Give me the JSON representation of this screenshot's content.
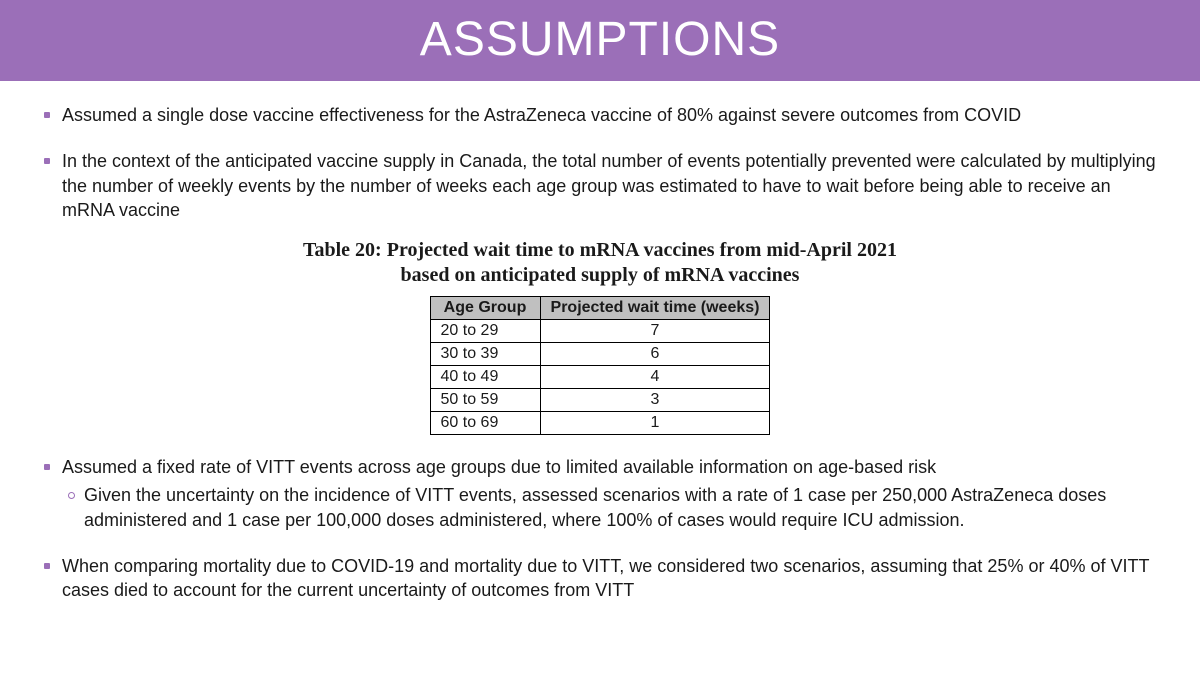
{
  "header": {
    "title": "ASSUMPTIONS"
  },
  "colors": {
    "header_bg": "#9b6fb8",
    "header_text": "#ffffff",
    "bullet": "#9b6fb8",
    "body_text": "#1a1a1a",
    "table_header_bg": "#c0c0c0",
    "table_border": "#000000",
    "page_bg": "#ffffff"
  },
  "bullets": {
    "b1": "Assumed a single dose vaccine effectiveness for the AstraZeneca vaccine of 80% against severe outcomes from COVID",
    "b2": "In the context of the anticipated vaccine supply in Canada, the total number of events potentially prevented were calculated by multiplying the number of weekly events by the number of weeks each age group was estimated to have to wait before being able to receive an mRNA vaccine",
    "b3": "Assumed a fixed rate of VITT events across age groups due to limited available information on age-based risk",
    "b3_sub": "Given the uncertainty on the incidence of VITT events, assessed scenarios with a rate of 1 case per 250,000 AstraZeneca doses administered and 1 case per 100,000 doses administered, where 100% of cases would require ICU admission.",
    "b4": "When comparing mortality due to COVID-19 and mortality due to VITT, we considered two scenarios, assuming that 25% or 40% of VITT cases died to account for the current uncertainty of outcomes from VITT"
  },
  "table": {
    "title": "Table 20: Projected wait time to mRNA vaccines from mid-April 2021 based on anticipated supply of mRNA vaccines",
    "col1": "Age Group",
    "col2": "Projected wait time (weeks)",
    "rows": [
      {
        "age": "20 to 29",
        "wait": "7"
      },
      {
        "age": "30 to 39",
        "wait": "6"
      },
      {
        "age": "40 to 49",
        "wait": "4"
      },
      {
        "age": "50 to 59",
        "wait": "3"
      },
      {
        "age": "60 to 69",
        "wait": "1"
      }
    ]
  }
}
